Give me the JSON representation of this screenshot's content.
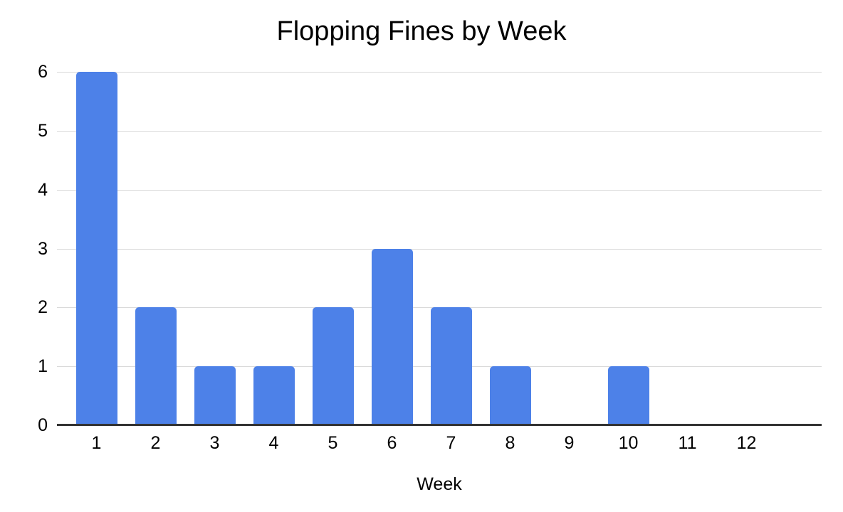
{
  "chart_data": {
    "type": "bar",
    "title": "Flopping Fines by Week",
    "xlabel": "Week",
    "ylabel": "",
    "categories": [
      "1",
      "2",
      "3",
      "4",
      "5",
      "6",
      "7",
      "8",
      "9",
      "10",
      "11",
      "12"
    ],
    "values": [
      6,
      2,
      1,
      1,
      2,
      3,
      2,
      1,
      0,
      1,
      0,
      0
    ],
    "ylim": [
      0,
      6
    ],
    "yticks": [
      0,
      1,
      2,
      3,
      4,
      5,
      6
    ],
    "grid": true,
    "legend_position": "none",
    "bar_color": "#4d81e8",
    "gridline_color": "#d9d9d9",
    "axis_color": "#333333",
    "background_color": "#ffffff",
    "text_color": "#000000"
  }
}
